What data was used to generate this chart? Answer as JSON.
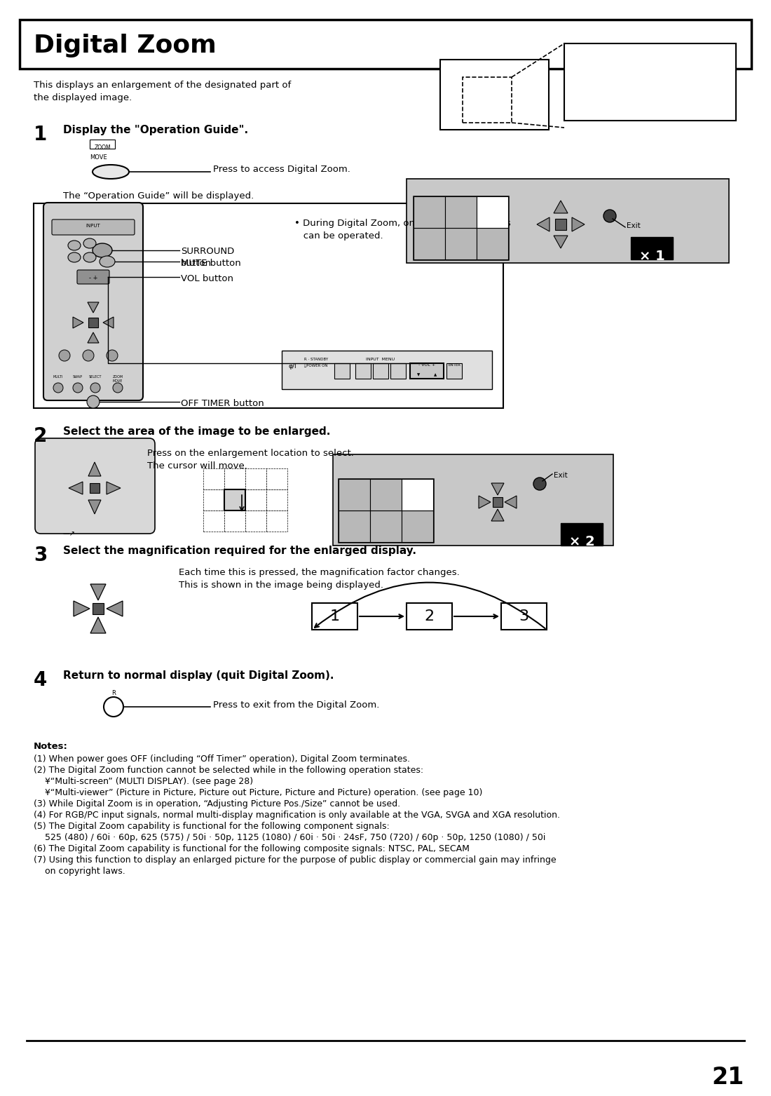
{
  "title": "Digital Zoom",
  "page_number": "21",
  "bg_color": "#ffffff",
  "text_color": "#000000",
  "title_fontsize": 26,
  "body_fontsize": 9.5,
  "small_fontsize": 8.0,
  "step1_header": "Display the \"Operation Guide\".",
  "step2_header": "Select the area of the image to be enlarged.",
  "step3_header": "Select the magnification required for the enlarged display.",
  "step4_header": "Return to normal display (quit Digital Zoom).",
  "intro_text": "This displays an enlargement of the designated part of\nthe displayed image.",
  "step1_text1": "Press to access Digital Zoom.",
  "step1_text2": "The “Operation Guide” will be displayed.",
  "step1_bullet": "• During Digital Zoom, only the following keys\n   can be operated.",
  "step2_text1": "Press on the enlargement location to select.\nThe cursor will move.",
  "step3_text1": "Each time this is pressed, the magnification factor changes.\nThis is shown in the image being displayed.",
  "step4_text1": "Press to exit from the Digital Zoom.",
  "notes_title": "Notes:",
  "notes": [
    "(1) When power goes OFF (including “Off Timer” operation), Digital Zoom terminates.",
    "(2) The Digital Zoom function cannot be selected while in the following operation states:",
    "    ¥“Multi-screen” (MULTI DISPLAY). (see page 28)",
    "    ¥“Multi-viewer” (Picture in Picture, Picture out Picture, Picture and Picture) operation. (see page 10)",
    "(3) While Digital Zoom is in operation, “Adjusting Picture Pos./Size” cannot be used.",
    "(4) For RGB/PC input signals, normal multi-display magnification is only available at the VGA, SVGA and XGA resolution.",
    "(5) The Digital Zoom capability is functional for the following component signals:",
    "    525 (480) / 60i · 60p, 625 (575) / 50i · 50p, 1125 (1080) / 60i · 50i · 24sF, 750 (720) / 60p · 50p, 1250 (1080) / 50i",
    "(6) The Digital Zoom capability is functional for the following composite signals: NTSC, PAL, SECAM",
    "(7) Using this function to display an enlarged picture for the purpose of public display or commercial gain may infringe",
    "    on copyright laws."
  ]
}
